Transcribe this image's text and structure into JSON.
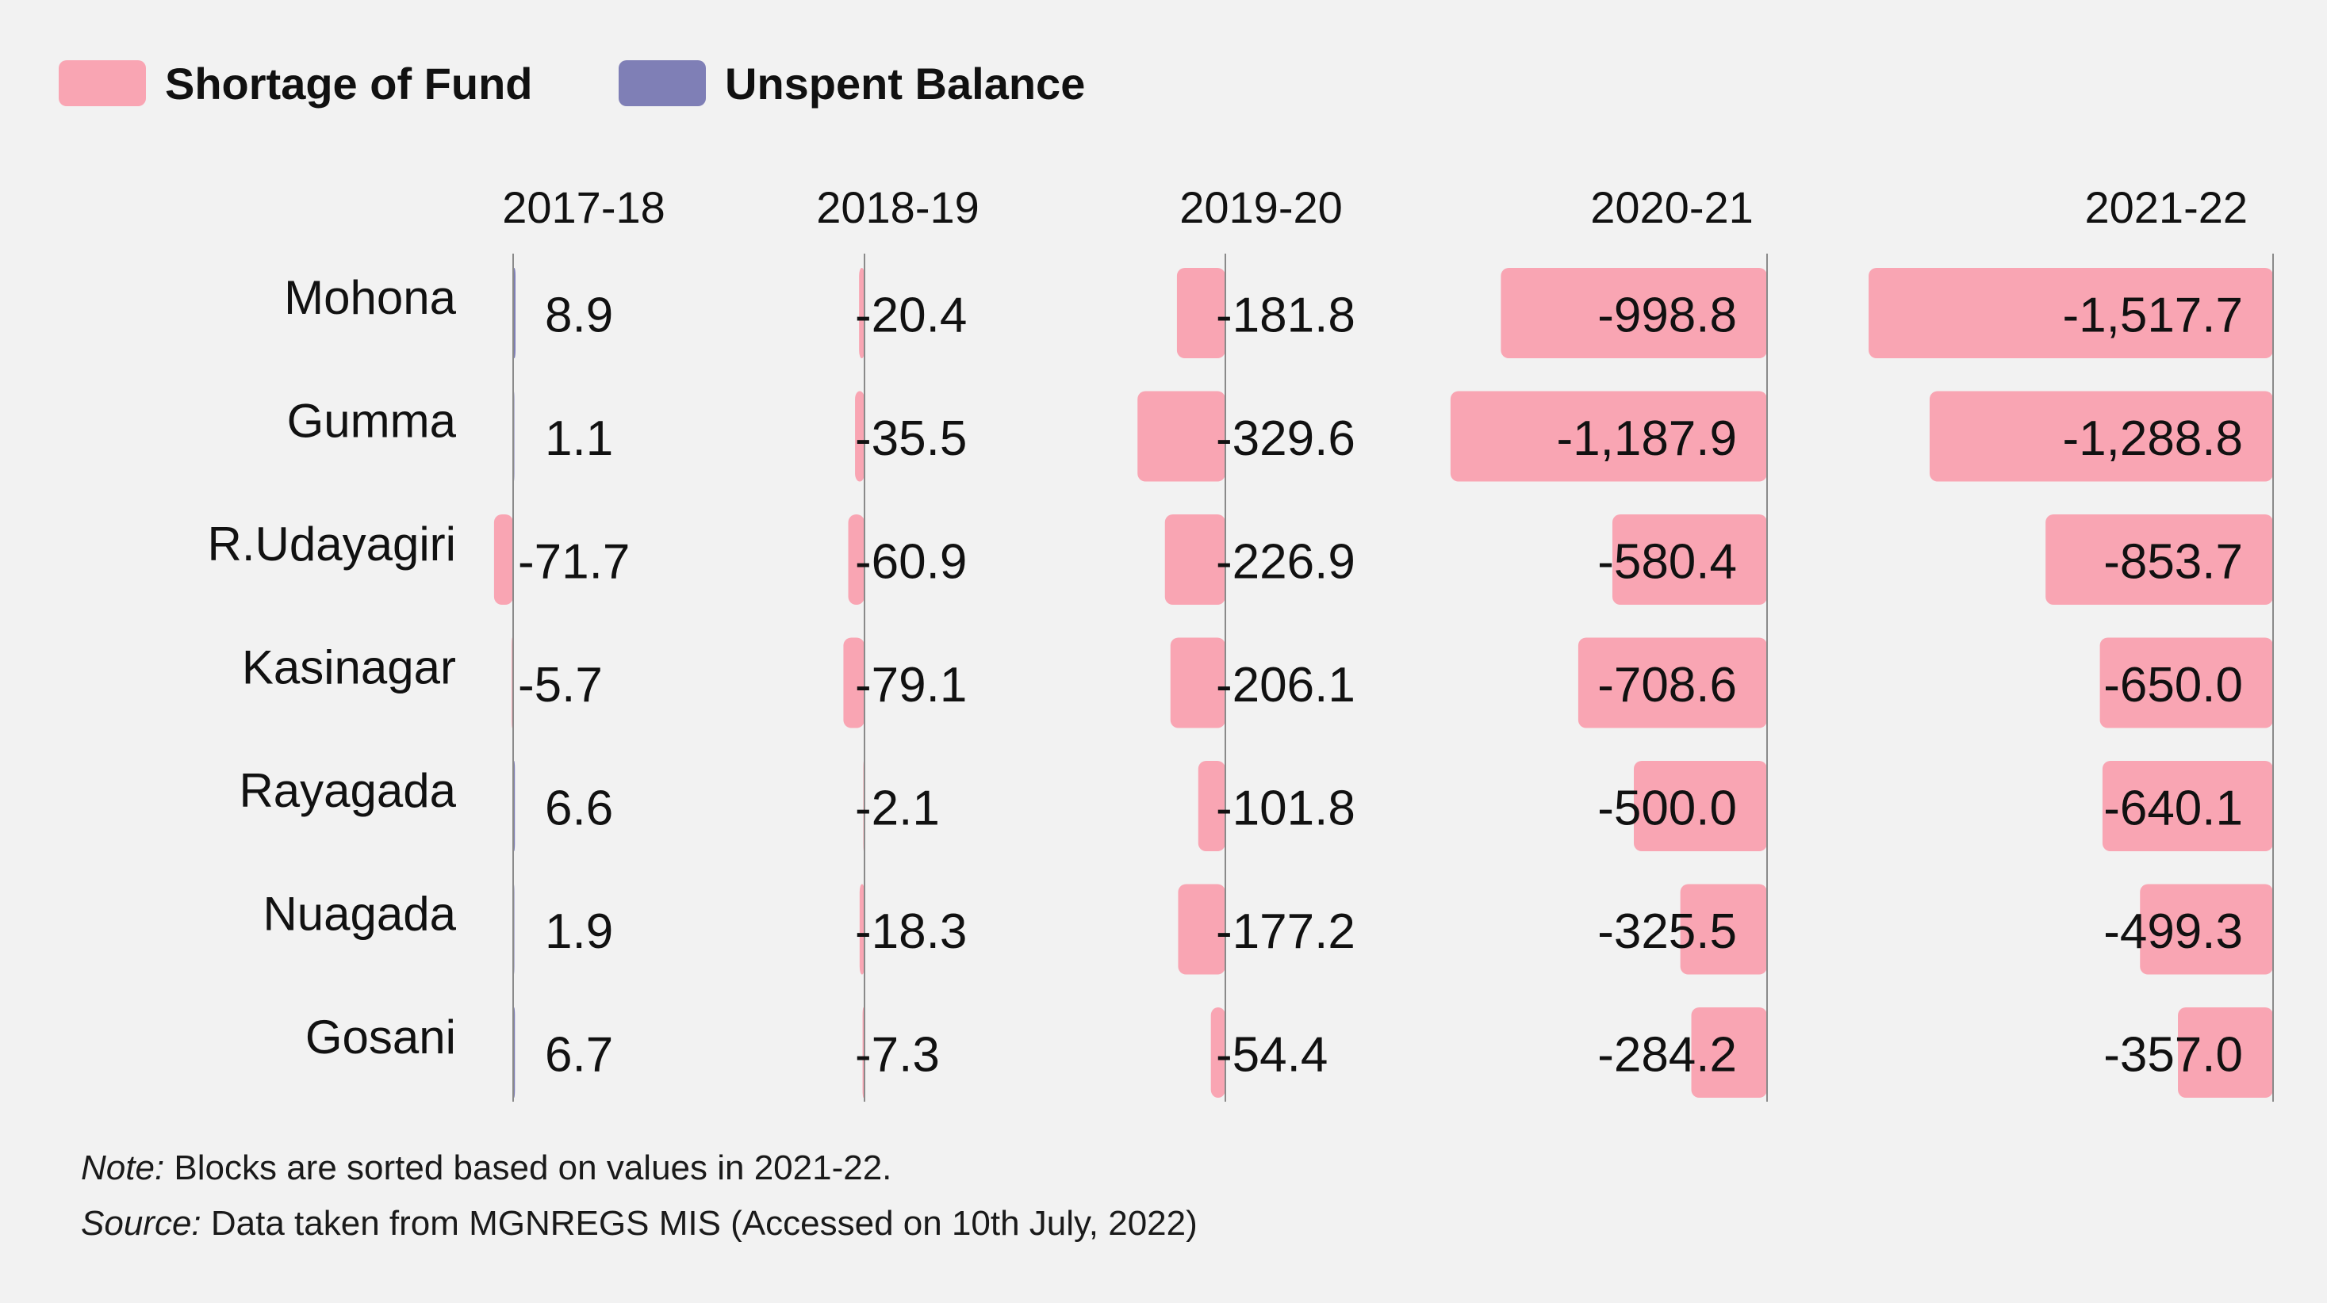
{
  "legend": {
    "shortage_label": "Shortage of Fund",
    "unspent_label": "Unspent Balance",
    "shortage_color": "#f9a5b3",
    "unspent_color": "#7f7fb6"
  },
  "footnotes": {
    "note_prefix": "Note:",
    "note_text": " Blocks are sorted based on values in 2021-22.",
    "source_prefix": "Source:",
    "source_text": " Data taken from MGNREGS MIS (Accessed on 10th July, 2022)"
  },
  "chart_data": {
    "type": "bar",
    "orientation": "horizontal-small-multiples",
    "categories": [
      "Mohona",
      "Gumma",
      "R.Udayagiri",
      "Kasinagar",
      "Rayagada",
      "Nuagada",
      "Gosani"
    ],
    "series": [
      {
        "name": "2017-18",
        "values": [
          8.9,
          1.1,
          -71.7,
          -5.7,
          6.6,
          1.9,
          6.7
        ],
        "labels": [
          "8.9",
          "1.1",
          "-71.7",
          "-5.7",
          "6.6",
          "1.9",
          "6.7"
        ]
      },
      {
        "name": "2018-19",
        "values": [
          -20.4,
          -35.5,
          -60.9,
          -79.1,
          -2.1,
          -18.3,
          -7.3
        ],
        "labels": [
          "-20.4",
          "-35.5",
          "-60.9",
          "-79.1",
          "-2.1",
          "-18.3",
          "-7.3"
        ]
      },
      {
        "name": "2019-20",
        "values": [
          -181.8,
          -329.6,
          -226.9,
          -206.1,
          -101.8,
          -177.2,
          -54.4
        ],
        "labels": [
          "-181.8",
          "-329.6",
          "-226.9",
          "-206.1",
          "-101.8",
          "-177.2",
          "-54.4"
        ]
      },
      {
        "name": "2020-21",
        "values": [
          -998.8,
          -1187.9,
          -580.4,
          -708.6,
          -500.0,
          -325.5,
          -284.2
        ],
        "labels": [
          "-998.8",
          "-1,187.9",
          "-580.4",
          "-708.6",
          "-500.0",
          "-325.5",
          "-284.2"
        ]
      },
      {
        "name": "2021-22",
        "values": [
          -1517.7,
          -1288.8,
          -853.7,
          -650.0,
          -640.1,
          -499.3,
          -357.0
        ],
        "labels": [
          "-1,517.7",
          "-1,288.8",
          "-853.7",
          "-650.0",
          "-640.1",
          "-499.3",
          "-357.0"
        ]
      }
    ],
    "negative_color": "#f9a5b3",
    "positive_color": "#7f7fb6",
    "legend_position": "top-left",
    "grid": false
  }
}
